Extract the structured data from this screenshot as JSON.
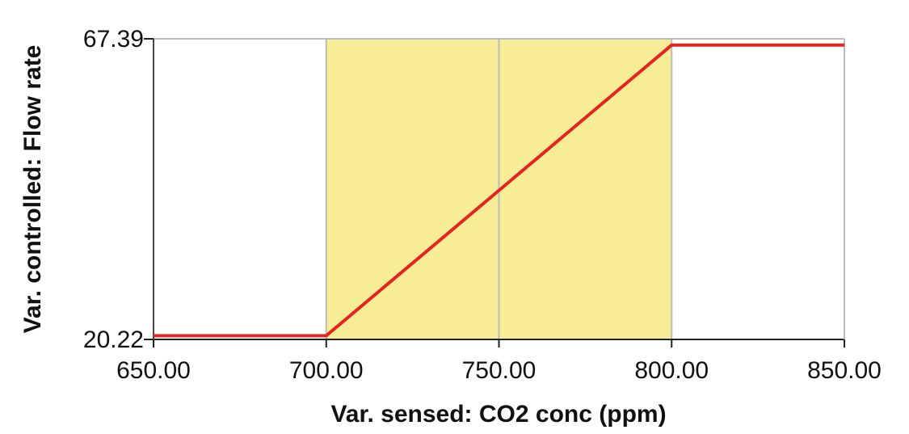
{
  "chart_data": {
    "type": "line",
    "x": [
      650,
      700,
      800,
      850
    ],
    "values": [
      20.8,
      20.8,
      66.4,
      66.4
    ],
    "color": "#e52420",
    "xlim": [
      650,
      850
    ],
    "ylim": [
      20.22,
      67.39
    ],
    "xticks": [
      {
        "value": 650,
        "label": "650.00"
      },
      {
        "value": 700,
        "label": "700.00"
      },
      {
        "value": 750,
        "label": "750.00"
      },
      {
        "value": 800,
        "label": "800.00"
      },
      {
        "value": 850,
        "label": "850.00"
      }
    ],
    "yticks": [
      20.22,
      67.39
    ],
    "highlight_x": [
      700,
      800
    ],
    "highlight_color": "#f6ed96",
    "grid": true,
    "xlabel": "Var. sensed: CO2 conc (ppm)",
    "ylabel": "Var. controlled: Flow rate"
  }
}
